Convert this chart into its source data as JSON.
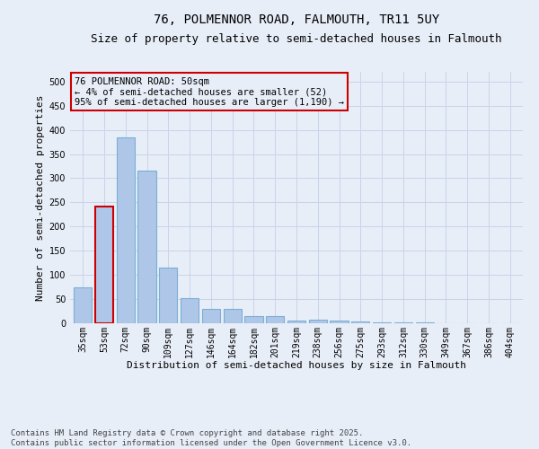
{
  "title_line1": "76, POLMENNOR ROAD, FALMOUTH, TR11 5UY",
  "title_line2": "Size of property relative to semi-detached houses in Falmouth",
  "xlabel": "Distribution of semi-detached houses by size in Falmouth",
  "ylabel": "Number of semi-detached properties",
  "categories": [
    "35sqm",
    "53sqm",
    "72sqm",
    "90sqm",
    "109sqm",
    "127sqm",
    "146sqm",
    "164sqm",
    "182sqm",
    "201sqm",
    "219sqm",
    "238sqm",
    "256sqm",
    "275sqm",
    "293sqm",
    "312sqm",
    "330sqm",
    "349sqm",
    "367sqm",
    "386sqm",
    "404sqm"
  ],
  "values": [
    75,
    242,
    385,
    315,
    115,
    52,
    30,
    30,
    15,
    15,
    6,
    7,
    5,
    3,
    2,
    1,
    1,
    0,
    0,
    0,
    0
  ],
  "highlight_index": 1,
  "bar_color": "#aec6e8",
  "bar_edge_color": "#7aafd4",
  "highlight_edge_color": "#cc0000",
  "annotation_text": "76 POLMENNOR ROAD: 50sqm\n← 4% of semi-detached houses are smaller (52)\n95% of semi-detached houses are larger (1,190) →",
  "annotation_box_edge_color": "#cc0000",
  "ylim": [
    0,
    520
  ],
  "yticks": [
    0,
    50,
    100,
    150,
    200,
    250,
    300,
    350,
    400,
    450,
    500
  ],
  "grid_color": "#c8d4e8",
  "background_color": "#e8eef8",
  "footnote": "Contains HM Land Registry data © Crown copyright and database right 2025.\nContains public sector information licensed under the Open Government Licence v3.0.",
  "title_fontsize": 10,
  "subtitle_fontsize": 9,
  "axis_label_fontsize": 8,
  "tick_fontsize": 7,
  "annotation_fontsize": 7.5,
  "footnote_fontsize": 6.5
}
